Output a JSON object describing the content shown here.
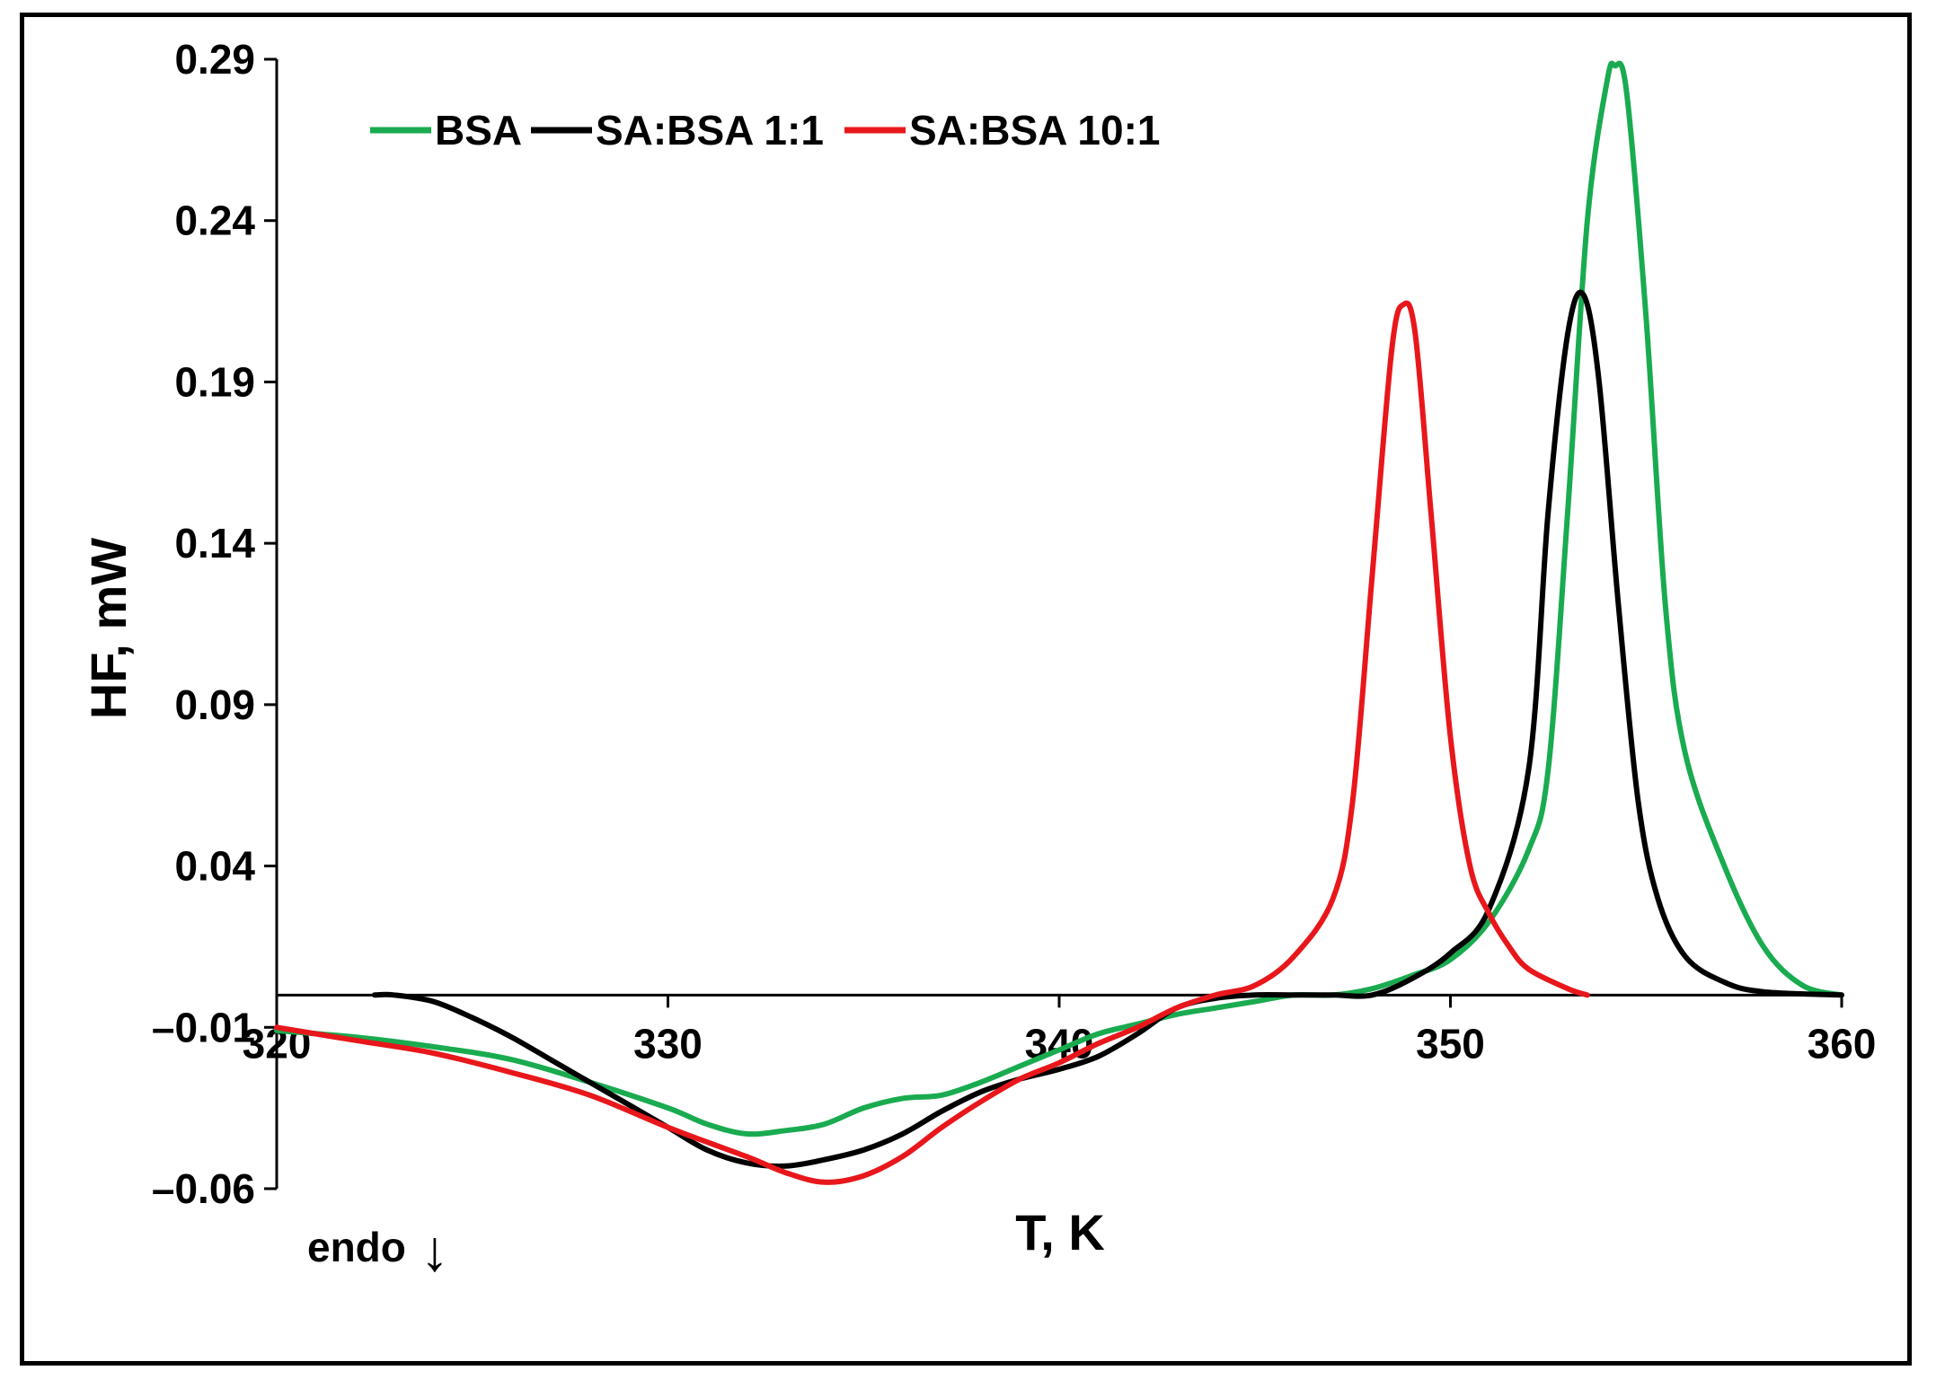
{
  "chart_data": {
    "type": "line",
    "xlabel": "T, K",
    "ylabel": "HF, mW",
    "xlim": [
      320,
      360
    ],
    "ylim": [
      -0.06,
      0.29
    ],
    "x_ticks": [
      "320",
      "330",
      "340",
      "350",
      "360"
    ],
    "y_ticks": [
      "0.29",
      "0.24",
      "0.19",
      "0.14",
      "0.09",
      "0.04",
      "–0.01",
      "–0.06"
    ],
    "legend_position": "top-left",
    "annotation": "endo",
    "annotation_arrow": "↓",
    "series": [
      {
        "name": "BSA",
        "color": "#1aab50",
        "points": [
          [
            320,
            -0.011
          ],
          [
            322,
            -0.013
          ],
          [
            324,
            -0.016
          ],
          [
            326,
            -0.02
          ],
          [
            328,
            -0.027
          ],
          [
            330,
            -0.035
          ],
          [
            331,
            -0.04
          ],
          [
            332,
            -0.043
          ],
          [
            333,
            -0.042
          ],
          [
            334,
            -0.04
          ],
          [
            335,
            -0.035
          ],
          [
            336,
            -0.032
          ],
          [
            337,
            -0.031
          ],
          [
            338,
            -0.027
          ],
          [
            339,
            -0.022
          ],
          [
            340,
            -0.017
          ],
          [
            341,
            -0.012
          ],
          [
            342,
            -0.009
          ],
          [
            343,
            -0.006
          ],
          [
            344,
            -0.004
          ],
          [
            345,
            -0.002
          ],
          [
            346,
            0.0
          ],
          [
            347,
            0.0
          ],
          [
            348,
            0.002
          ],
          [
            349,
            0.006
          ],
          [
            350,
            0.011
          ],
          [
            351,
            0.023
          ],
          [
            352,
            0.045
          ],
          [
            352.5,
            0.07
          ],
          [
            353,
            0.15
          ],
          [
            353.5,
            0.24
          ],
          [
            354,
            0.283
          ],
          [
            354.2,
            0.288
          ],
          [
            354.5,
            0.28
          ],
          [
            355,
            0.21
          ],
          [
            355.5,
            0.12
          ],
          [
            356,
            0.075
          ],
          [
            357,
            0.04
          ],
          [
            358,
            0.015
          ],
          [
            359,
            0.003
          ],
          [
            360,
            0.0
          ]
        ]
      },
      {
        "name": "SA:BSA 1:1",
        "color": "#000000",
        "points": [
          [
            322.5,
            0.0
          ],
          [
            323,
            0.0
          ],
          [
            324,
            -0.002
          ],
          [
            325,
            -0.007
          ],
          [
            326,
            -0.013
          ],
          [
            327,
            -0.02
          ],
          [
            328,
            -0.027
          ],
          [
            329,
            -0.034
          ],
          [
            330,
            -0.041
          ],
          [
            331,
            -0.048
          ],
          [
            332,
            -0.052
          ],
          [
            333,
            -0.053
          ],
          [
            334,
            -0.051
          ],
          [
            335,
            -0.048
          ],
          [
            336,
            -0.043
          ],
          [
            337,
            -0.036
          ],
          [
            338,
            -0.03
          ],
          [
            339,
            -0.026
          ],
          [
            340,
            -0.023
          ],
          [
            341,
            -0.019
          ],
          [
            342,
            -0.012
          ],
          [
            343,
            -0.004
          ],
          [
            344,
            -0.001
          ],
          [
            345,
            0.0
          ],
          [
            346,
            0.0
          ],
          [
            347,
            0.0
          ],
          [
            348,
            0.0
          ],
          [
            349,
            0.005
          ],
          [
            350,
            0.013
          ],
          [
            351,
            0.027
          ],
          [
            352,
            0.07
          ],
          [
            352.5,
            0.15
          ],
          [
            353,
            0.205
          ],
          [
            353.4,
            0.217
          ],
          [
            353.8,
            0.19
          ],
          [
            354.3,
            0.12
          ],
          [
            354.8,
            0.06
          ],
          [
            355.3,
            0.03
          ],
          [
            356,
            0.012
          ],
          [
            357,
            0.004
          ],
          [
            358,
            0.001
          ],
          [
            360,
            0.0
          ]
        ]
      },
      {
        "name": "SA:BSA 10:1",
        "color": "#e8171b",
        "points": [
          [
            320,
            -0.01
          ],
          [
            322,
            -0.014
          ],
          [
            324,
            -0.018
          ],
          [
            326,
            -0.024
          ],
          [
            328,
            -0.031
          ],
          [
            330,
            -0.041
          ],
          [
            332,
            -0.05
          ],
          [
            333,
            -0.055
          ],
          [
            334,
            -0.058
          ],
          [
            335,
            -0.056
          ],
          [
            336,
            -0.05
          ],
          [
            337,
            -0.041
          ],
          [
            338,
            -0.033
          ],
          [
            339,
            -0.026
          ],
          [
            340,
            -0.021
          ],
          [
            341,
            -0.015
          ],
          [
            342,
            -0.01
          ],
          [
            343,
            -0.004
          ],
          [
            344,
            0.0
          ],
          [
            345,
            0.003
          ],
          [
            346,
            0.012
          ],
          [
            347,
            0.03
          ],
          [
            347.5,
            0.06
          ],
          [
            348,
            0.13
          ],
          [
            348.5,
            0.2
          ],
          [
            348.8,
            0.214
          ],
          [
            349.1,
            0.205
          ],
          [
            349.5,
            0.15
          ],
          [
            350,
            0.08
          ],
          [
            350.5,
            0.04
          ],
          [
            351,
            0.025
          ],
          [
            351.5,
            0.015
          ],
          [
            352,
            0.008
          ],
          [
            353,
            0.002
          ],
          [
            353.5,
            0.0
          ]
        ]
      }
    ]
  }
}
